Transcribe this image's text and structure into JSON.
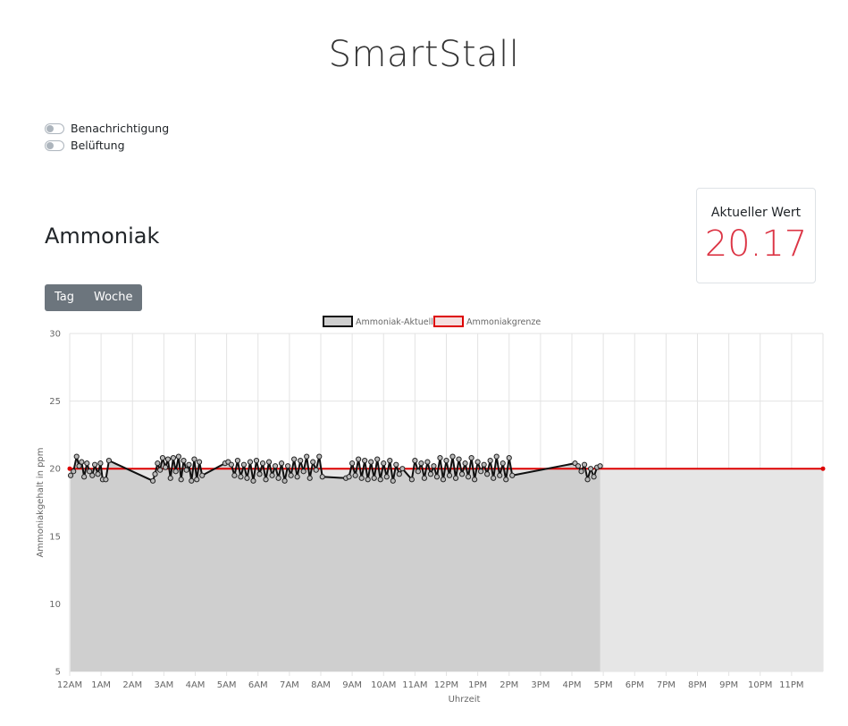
{
  "app": {
    "title": "SmartStall"
  },
  "toggles": [
    {
      "label": "Benachrichtigung",
      "on": false
    },
    {
      "label": "Belüftung",
      "on": false
    }
  ],
  "section": {
    "title": "Ammoniak"
  },
  "current": {
    "label": "Aktueller Wert",
    "value": "20.17"
  },
  "range_buttons": [
    {
      "label": "Tag"
    },
    {
      "label": "Woche"
    }
  ],
  "colors": {
    "accent_red": "#dc3545",
    "button_gray": "#6c757d",
    "series_line": "#111111",
    "series_fill": "#cfcfcf",
    "limit_line": "#dd0000",
    "limit_fill": "#e6e6e6"
  },
  "chart_data": {
    "type": "line",
    "xlabel": "Uhrzeit",
    "ylabel": "Ammoniakgehalt in ppm",
    "ylim": [
      5,
      30
    ],
    "yticks": [
      5,
      10,
      15,
      20,
      25,
      30
    ],
    "xlim": [
      0,
      24
    ],
    "xticks": [
      {
        "h": 0,
        "label": "12AM"
      },
      {
        "h": 1,
        "label": "1AM"
      },
      {
        "h": 2,
        "label": "2AM"
      },
      {
        "h": 3,
        "label": "3AM"
      },
      {
        "h": 4,
        "label": "4AM"
      },
      {
        "h": 5,
        "label": "5AM"
      },
      {
        "h": 6,
        "label": "6AM"
      },
      {
        "h": 7,
        "label": "7AM"
      },
      {
        "h": 8,
        "label": "8AM"
      },
      {
        "h": 9,
        "label": "9AM"
      },
      {
        "h": 10,
        "label": "10AM"
      },
      {
        "h": 11,
        "label": "11AM"
      },
      {
        "h": 12,
        "label": "12PM"
      },
      {
        "h": 13,
        "label": "1PM"
      },
      {
        "h": 14,
        "label": "2PM"
      },
      {
        "h": 15,
        "label": "3PM"
      },
      {
        "h": 16,
        "label": "4PM"
      },
      {
        "h": 17,
        "label": "5PM"
      },
      {
        "h": 18,
        "label": "6PM"
      },
      {
        "h": 19,
        "label": "7PM"
      },
      {
        "h": 20,
        "label": "8PM"
      },
      {
        "h": 21,
        "label": "9PM"
      },
      {
        "h": 22,
        "label": "10PM"
      },
      {
        "h": 23,
        "label": "11PM"
      }
    ],
    "grid": true,
    "legend": "top-center",
    "series": [
      {
        "name": "Ammoniak-Aktuell",
        "x": [
          0.03,
          0.12,
          0.22,
          0.3,
          0.38,
          0.46,
          0.55,
          0.63,
          0.72,
          0.8,
          0.9,
          0.98,
          1.05,
          1.15,
          1.25,
          2.65,
          2.72,
          2.8,
          2.88,
          2.96,
          3.05,
          3.13,
          3.21,
          3.3,
          3.38,
          3.47,
          3.55,
          3.63,
          3.72,
          3.8,
          3.88,
          3.97,
          4.05,
          4.13,
          4.22,
          4.95,
          5.05,
          5.15,
          5.25,
          5.35,
          5.45,
          5.55,
          5.65,
          5.75,
          5.85,
          5.95,
          6.05,
          6.15,
          6.25,
          6.35,
          6.45,
          6.55,
          6.65,
          6.75,
          6.85,
          6.95,
          7.05,
          7.15,
          7.25,
          7.35,
          7.45,
          7.55,
          7.65,
          7.75,
          7.85,
          7.95,
          8.05,
          8.8,
          8.9,
          9.0,
          9.1,
          9.2,
          9.3,
          9.4,
          9.5,
          9.6,
          9.7,
          9.8,
          9.9,
          10.0,
          10.1,
          10.2,
          10.3,
          10.4,
          10.5,
          10.6,
          10.9,
          11.0,
          11.1,
          11.2,
          11.3,
          11.4,
          11.5,
          11.6,
          11.7,
          11.8,
          11.9,
          12.0,
          12.1,
          12.2,
          12.3,
          12.4,
          12.5,
          12.6,
          12.7,
          12.8,
          12.9,
          13.0,
          13.1,
          13.2,
          13.3,
          13.4,
          13.5,
          13.6,
          13.7,
          13.8,
          13.9,
          14.0,
          14.1,
          16.1,
          16.2,
          16.3,
          16.4,
          16.5,
          16.6,
          16.7,
          16.8,
          16.9
        ],
        "y": [
          19.5,
          19.8,
          20.9,
          20.2,
          20.5,
          19.4,
          20.4,
          19.8,
          19.5,
          20.3,
          19.6,
          20.4,
          19.2,
          19.2,
          20.6,
          19.1,
          19.6,
          20.4,
          19.9,
          20.8,
          20.1,
          20.7,
          19.3,
          20.8,
          19.8,
          20.9,
          19.2,
          20.6,
          19.9,
          20.3,
          19.1,
          20.7,
          19.2,
          20.5,
          19.5,
          20.4,
          20.5,
          20.3,
          19.5,
          20.6,
          19.4,
          20.3,
          19.3,
          20.5,
          19.1,
          20.6,
          19.6,
          20.4,
          19.2,
          20.5,
          19.5,
          20.2,
          19.3,
          20.4,
          19.1,
          20.2,
          19.5,
          20.7,
          19.4,
          20.6,
          19.8,
          20.9,
          19.3,
          20.5,
          19.9,
          20.9,
          19.4,
          19.3,
          19.4,
          20.4,
          19.5,
          20.7,
          19.3,
          20.6,
          19.2,
          20.5,
          19.3,
          20.7,
          19.2,
          20.4,
          19.4,
          20.6,
          19.1,
          20.3,
          19.6,
          20.0,
          19.2,
          20.6,
          19.8,
          20.4,
          19.3,
          20.5,
          19.6,
          20.2,
          19.4,
          20.8,
          19.2,
          20.6,
          19.5,
          20.9,
          19.3,
          20.7,
          19.6,
          20.4,
          19.4,
          20.8,
          19.2,
          20.5,
          19.8,
          20.3,
          19.6,
          20.6,
          19.3,
          20.9,
          19.5,
          20.4,
          19.2,
          20.8,
          19.5,
          20.4,
          20.2,
          19.8,
          20.3,
          19.2,
          20.0,
          19.4,
          20.1,
          20.2
        ]
      },
      {
        "name": "Ammoniakgrenze",
        "x": [
          0,
          24
        ],
        "y": [
          20,
          20
        ]
      }
    ]
  }
}
